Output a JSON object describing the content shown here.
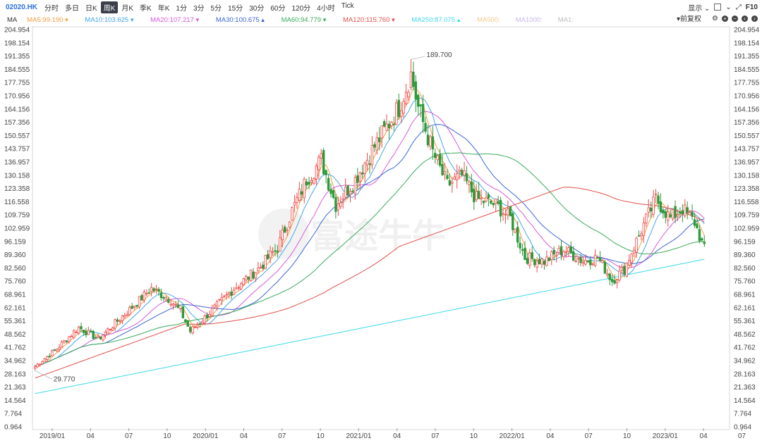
{
  "header": {
    "ticker": "02020.HK",
    "tabs": [
      "分时",
      "多日",
      "日K",
      "周K",
      "月K",
      "季K",
      "年K",
      "1分",
      "3分",
      "5分",
      "15分",
      "30分",
      "60分",
      "120分",
      "4小时",
      "Tick"
    ],
    "active_tab": "周K",
    "display_label": "显示",
    "f10_label": "F10"
  },
  "ma_bar": {
    "title": "MA",
    "adjust_label": "前复权",
    "items": [
      {
        "text": "MA5:99.190",
        "color": "#f39c3f",
        "arrow": "▼"
      },
      {
        "text": "MA10:103.625",
        "color": "#45a6e6",
        "arrow": "▼"
      },
      {
        "text": "MA20:107.217",
        "color": "#d45ad8",
        "arrow": "▼"
      },
      {
        "text": "MA30:100.675",
        "color": "#3a66d6",
        "arrow": "▲"
      },
      {
        "text": "MA60:94.779",
        "color": "#3aaa5a",
        "arrow": "▼"
      },
      {
        "text": "MA120:115.760",
        "color": "#e0504a",
        "arrow": "▼"
      },
      {
        "text": "MA250:87.075",
        "color": "#3fd9ea",
        "arrow": "▲"
      },
      {
        "text": "MA500:",
        "color": "#f3c98a",
        "arrow": ""
      },
      {
        "text": "MA1000:",
        "color": "#c9b5ea",
        "arrow": ""
      },
      {
        "text": "MA1:",
        "color": "#bbbbbb",
        "arrow": ""
      }
    ]
  },
  "watermark": "富途牛牛",
  "chart_data": {
    "type": "candlestick",
    "y_ticks": [
      "204.954",
      "198.154",
      "191.355",
      "184.555",
      "177.755",
      "170.956",
      "164.156",
      "157.356",
      "150.557",
      "143.757",
      "136.957",
      "130.158",
      "123.358",
      "116.558",
      "109.759",
      "102.959",
      "96.159",
      "89.360",
      "82.560",
      "75.760",
      "68.961",
      "62.161",
      "55.361",
      "48.562",
      "41.762",
      "34.962",
      "28.163",
      "21.363",
      "14.564",
      "7.764",
      "0.964"
    ],
    "ylim": [
      0.964,
      204.954
    ],
    "x_ticks": [
      "2019/01",
      "04",
      "07",
      "10",
      "2020/01",
      "04",
      "07",
      "10",
      "2021/01",
      "04",
      "07",
      "10",
      "2022/01",
      "04",
      "07",
      "10",
      "2023/01",
      "04",
      "07"
    ],
    "annotations": {
      "high": "189.700",
      "low": "29.770"
    },
    "colors": {
      "up": "#f04848",
      "down": "#2e9a3a"
    },
    "close_keypoints": [
      [
        0,
        32
      ],
      [
        8,
        40
      ],
      [
        18,
        52
      ],
      [
        26,
        46
      ],
      [
        38,
        60
      ],
      [
        48,
        72
      ],
      [
        56,
        66
      ],
      [
        60,
        60
      ],
      [
        64,
        50
      ],
      [
        70,
        57
      ],
      [
        82,
        72
      ],
      [
        92,
        82
      ],
      [
        100,
        93
      ],
      [
        106,
        112
      ],
      [
        112,
        128
      ],
      [
        118,
        138
      ],
      [
        124,
        115
      ],
      [
        132,
        128
      ],
      [
        140,
        145
      ],
      [
        150,
        165
      ],
      [
        155,
        182
      ],
      [
        158,
        165
      ],
      [
        164,
        142
      ],
      [
        170,
        125
      ],
      [
        176,
        130
      ],
      [
        182,
        118
      ],
      [
        190,
        115
      ],
      [
        196,
        108
      ],
      [
        202,
        88
      ],
      [
        210,
        86
      ],
      [
        218,
        92
      ],
      [
        226,
        86
      ],
      [
        232,
        88
      ],
      [
        238,
        76
      ],
      [
        243,
        82
      ],
      [
        250,
        102
      ],
      [
        256,
        118
      ],
      [
        262,
        108
      ],
      [
        267,
        113
      ],
      [
        272,
        106
      ],
      [
        276,
        92
      ]
    ]
  }
}
